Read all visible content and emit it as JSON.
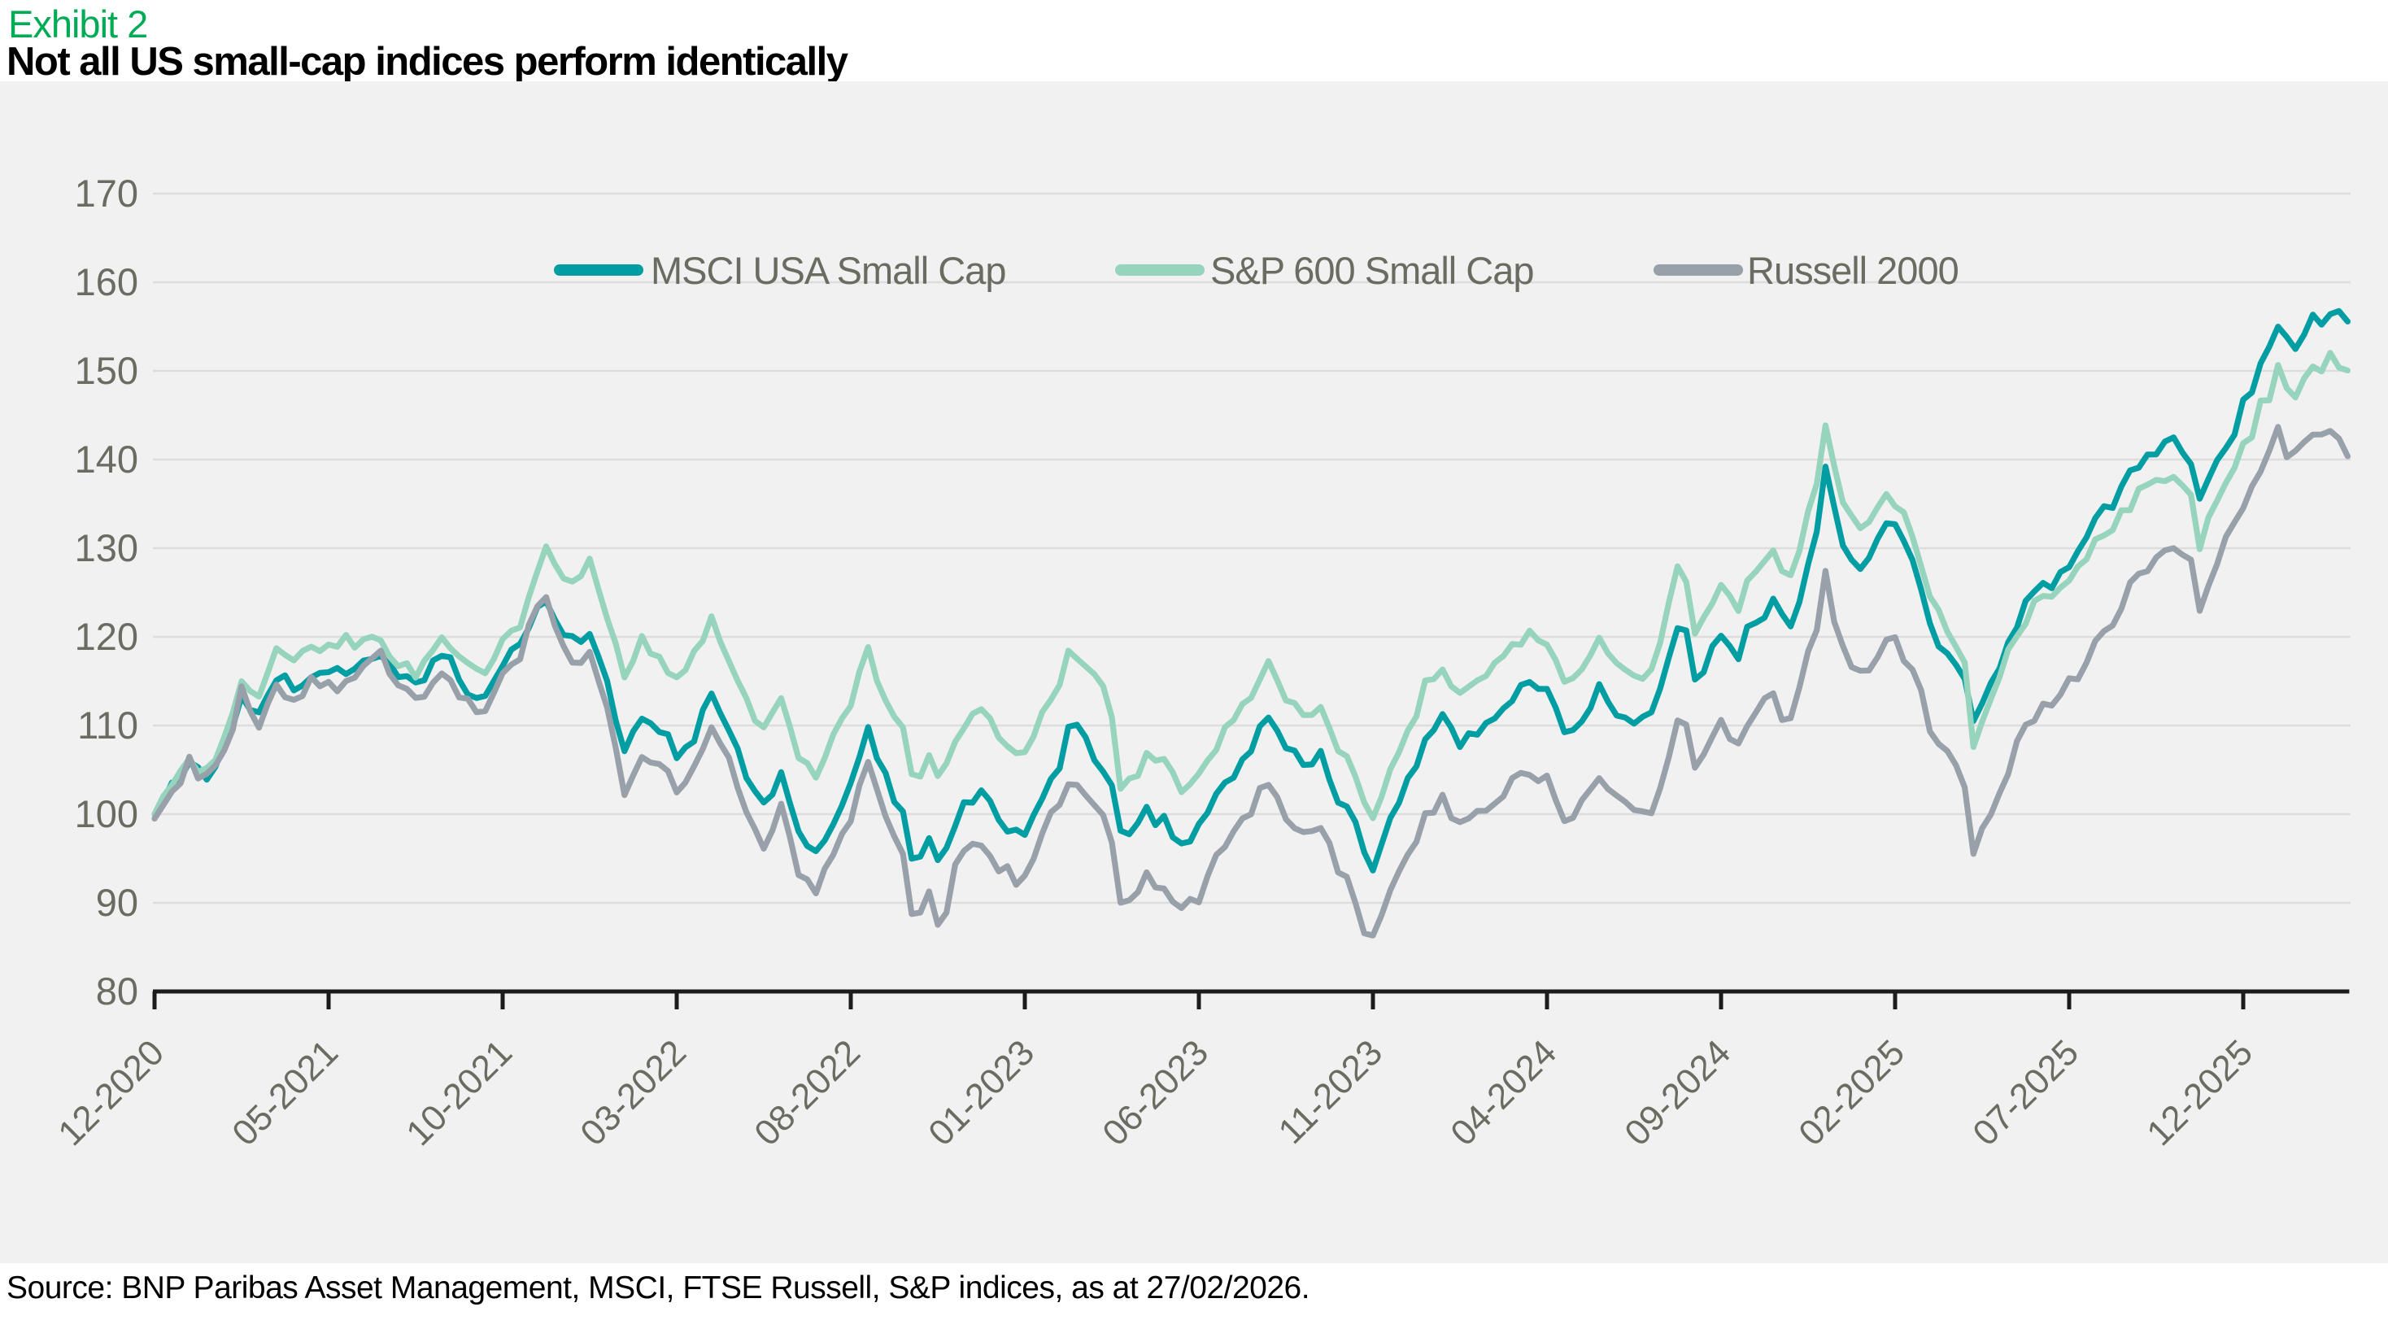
{
  "header": {
    "exhibit": "Exhibit 2",
    "title": "Not all US small-cap indices perform identically"
  },
  "footer": {
    "source": "Source: BNP Paribas Asset Management, MSCI, FTSE Russell, S&P indices, as at 27/02/2026."
  },
  "colors": {
    "exhibit_green": "#00AB55",
    "axis_text": "#6B6B62",
    "grid_line": "#DDDDDD",
    "axis_line": "#1B1B1B",
    "panel_bg": "#F1F1F1"
  },
  "chart_data": {
    "type": "line",
    "title": "Not all US small-cap indices perform identically",
    "index_base": "12-2020 = 100",
    "grid": "horizontal",
    "legend_position": "top-center",
    "y_axis": {
      "range": [
        80,
        170
      ],
      "ticks": [
        80,
        90,
        100,
        110,
        120,
        130,
        140,
        150,
        160,
        170
      ]
    },
    "x_axis": {
      "tick_months": [
        0,
        5,
        10,
        15,
        20,
        25,
        30,
        35,
        40,
        45,
        50,
        55,
        60
      ],
      "tick_labels": [
        "12-2020",
        "05-2021",
        "10-2021",
        "03-2022",
        "08-2022",
        "01-2023",
        "06-2023",
        "11-2023",
        "04-2024",
        "09-2024",
        "02-2025",
        "07-2025",
        "12-2025"
      ]
    },
    "anchor_months": [
      0,
      0.5,
      1,
      1.5,
      2,
      2.5,
      3,
      3.5,
      4,
      4.5,
      5,
      5.5,
      6,
      6.5,
      7,
      7.5,
      8,
      8.5,
      9,
      9.5,
      10,
      10.5,
      11,
      11.3,
      11.5,
      12,
      12.5,
      13,
      13.5,
      14,
      14.5,
      15,
      15.5,
      16,
      16.5,
      17,
      17.5,
      18,
      18.5,
      19,
      19.5,
      20,
      20.5,
      21,
      21.5,
      21.8,
      22.3,
      22.6,
      23,
      23.5,
      24,
      24.5,
      25,
      25.5,
      26,
      26.3,
      26.6,
      27,
      27.5,
      27.8,
      28,
      28.5,
      29,
      29.5,
      30,
      30.5,
      31,
      31.5,
      32,
      32.5,
      33,
      33.5,
      34,
      34.5,
      34.9,
      35.5,
      36,
      36.5,
      37,
      37.5,
      38,
      38.5,
      39,
      39.5,
      40,
      40.5,
      41,
      41.5,
      42,
      42.5,
      43,
      43.5,
      43.8,
      44,
      44.3,
      44.6,
      45,
      45.5,
      46,
      46.5,
      47,
      47.5,
      47.8,
      48,
      48.5,
      49,
      49.5,
      50,
      50.5,
      51,
      51.5,
      52,
      52.3,
      52.6,
      53,
      53.5,
      54,
      54.5,
      55,
      55.5,
      56,
      56.5,
      57,
      57.5,
      58,
      58.5,
      58.8,
      59,
      59.5,
      60,
      60.5,
      61,
      61.5,
      62,
      62.5,
      63
    ],
    "series": [
      {
        "name": "MSCI USA Small Cap",
        "color": "#009EA3",
        "values": [
          100,
          103,
          106,
          104.5,
          107,
          113,
          111,
          115,
          114,
          116,
          116,
          115.5,
          117,
          118.5,
          116,
          114.5,
          116.5,
          117,
          114.5,
          113.5,
          117,
          119,
          122.5,
          125.5,
          122,
          119,
          121,
          115,
          107,
          111,
          110,
          106.5,
          109,
          113.5,
          109.5,
          104.5,
          101,
          104.5,
          98,
          95.5,
          99,
          103.5,
          109.5,
          104,
          100.5,
          93.5,
          97,
          93.5,
          99.5,
          102,
          101.5,
          98.5,
          97.5,
          102,
          106,
          111,
          109,
          107,
          103,
          96.5,
          97.5,
          100,
          99,
          96.5,
          98.5,
          102,
          104.5,
          107,
          111.5,
          108,
          105.5,
          106.5,
          101.5,
          99,
          93,
          99.5,
          103.5,
          109,
          110.5,
          107.5,
          109.5,
          111,
          113.5,
          114.5,
          114,
          109.5,
          111.5,
          113.5,
          112,
          110.5,
          111,
          117,
          122.5,
          121,
          113.5,
          117,
          120.5,
          118,
          122,
          123.5,
          121.5,
          128,
          132,
          139.5,
          131,
          127.5,
          131.5,
          132.5,
          128.5,
          122,
          118,
          115.5,
          109,
          114,
          117.5,
          121.5,
          125,
          126,
          128.5,
          131.5,
          134,
          137,
          140,
          141.5,
          142.5,
          140,
          134,
          137,
          141.5,
          146.5,
          151,
          155,
          153,
          155.5,
          157,
          155.5
        ]
      },
      {
        "name": "S&P 600 Small Cap",
        "color": "#96D4BE",
        "values": [
          100,
          103.5,
          106.5,
          105,
          108,
          115,
          113,
          118,
          117.5,
          119,
          119.5,
          119,
          119,
          120,
          117.5,
          116,
          118.5,
          119,
          117,
          116.5,
          120,
          122,
          127,
          131.5,
          128,
          126.5,
          129,
          123,
          116,
          119.5,
          118,
          115,
          118,
          121.5,
          117.5,
          113,
          109.5,
          113.5,
          107,
          104,
          108,
          112.5,
          118.5,
          113,
          110,
          102.5,
          106.5,
          103,
          109,
          111.5,
          111,
          108,
          107,
          111,
          114.5,
          119.5,
          117.5,
          116,
          111,
          102,
          103.5,
          106.5,
          105.5,
          103,
          104.5,
          107.5,
          110,
          113,
          117,
          113.5,
          111,
          112,
          107,
          104.5,
          98.5,
          104.5,
          109,
          114.5,
          116,
          113,
          115,
          116.5,
          119,
          120,
          119.5,
          115,
          117,
          119,
          117.5,
          116,
          116.5,
          123,
          129,
          127,
          119.5,
          122.5,
          126,
          123.5,
          127.5,
          129,
          127,
          134,
          138.5,
          144,
          135,
          131.5,
          135,
          135.5,
          131.5,
          125,
          120.5,
          117.5,
          105.5,
          112,
          116,
          120,
          123.5,
          124.5,
          126.5,
          129,
          131.5,
          134,
          136.5,
          137.5,
          138,
          136,
          129,
          132.5,
          137,
          141.5,
          145.5,
          149.5,
          148,
          150.5,
          151.5,
          150
        ]
      },
      {
        "name": "Russell 2000",
        "color": "#98A1A9",
        "values": [
          99.5,
          103,
          106,
          104,
          107.5,
          114,
          110.5,
          113.5,
          112.5,
          115,
          114.5,
          114.5,
          116.5,
          118,
          114.5,
          112.5,
          115,
          115.5,
          113,
          112,
          116,
          118.5,
          122.5,
          125.5,
          120.5,
          116.5,
          118,
          111.5,
          103,
          107,
          106,
          102.5,
          105,
          110,
          105.5,
          100.5,
          97,
          100.5,
          93.5,
          91,
          94.5,
          99,
          105.5,
          100,
          96.5,
          87,
          91,
          85.5,
          94.5,
          97,
          96,
          93.5,
          92.5,
          97.5,
          100.5,
          104.5,
          102.5,
          101,
          96.5,
          89,
          90,
          93,
          92,
          89,
          91,
          95,
          97.5,
          100.5,
          103.5,
          100,
          97.5,
          98.5,
          93.5,
          90.5,
          84.5,
          91,
          95.5,
          100.5,
          101.5,
          98.5,
          100,
          101,
          103.5,
          104.5,
          104,
          99.5,
          101.5,
          103,
          101.5,
          100,
          100.5,
          106.5,
          112.5,
          111,
          104,
          107.5,
          110.5,
          108,
          112,
          113,
          111,
          118,
          121.5,
          127,
          118.5,
          115.5,
          119,
          120,
          116,
          110.5,
          106.5,
          104,
          93.5,
          99.5,
          103,
          107.5,
          111,
          112.5,
          115,
          117.5,
          120.5,
          124,
          127.5,
          129,
          130.5,
          128,
          122.5,
          126,
          130.5,
          135,
          139,
          142.5,
          140.5,
          142.5,
          143,
          140.5
        ]
      }
    ]
  }
}
